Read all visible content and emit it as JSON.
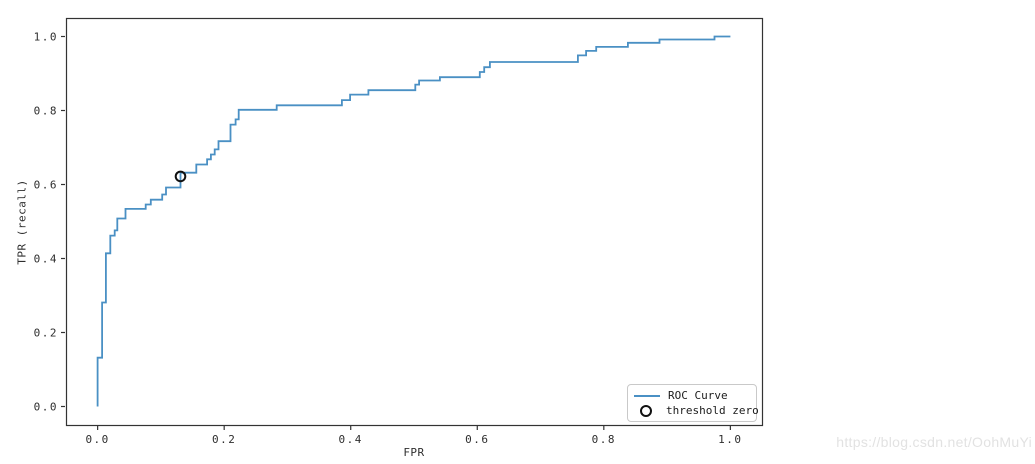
{
  "page": {
    "watermark": "https://blog.csdn.net/OohMuYi"
  },
  "colors": {
    "roc_line": "#4a90c4",
    "marker_stroke": "#111111",
    "spine": "#333333",
    "tick": "#333333",
    "tick_label": "#2e2e2e",
    "legend_border": "#c9c9c9",
    "watermark": "#e2e2e2",
    "background": "#ffffff"
  },
  "chart_data": {
    "type": "line",
    "title": "",
    "xlabel": "FPR",
    "ylabel": "TPR (recall)",
    "xlim": [
      -0.05,
      1.05
    ],
    "ylim": [
      -0.05,
      1.05
    ],
    "grid": false,
    "x_ticks": [
      0.0,
      0.2,
      0.4,
      0.6,
      0.8,
      1.0
    ],
    "y_ticks": [
      0.0,
      0.2,
      0.4,
      0.6,
      0.8,
      1.0
    ],
    "x_tick_labels": [
      "0.0",
      "0.2",
      "0.4",
      "0.6",
      "0.8",
      "1.0"
    ],
    "y_tick_labels": [
      "0.0",
      "0.2",
      "0.4",
      "0.6",
      "0.8",
      "1.0"
    ],
    "legend": {
      "position": "lower right",
      "entries": [
        {
          "label": "ROC Curve",
          "type": "line",
          "color": "#4a90c4"
        },
        {
          "label": "threshold zero",
          "type": "open-circle",
          "color": "#111111"
        }
      ]
    },
    "series": [
      {
        "name": "ROC Curve",
        "color": "#4a90c4",
        "drawstyle": "steps",
        "points": [
          [
            0.0,
            0.0
          ],
          [
            0.0,
            0.132
          ],
          [
            0.007,
            0.132
          ],
          [
            0.007,
            0.281
          ],
          [
            0.013,
            0.281
          ],
          [
            0.013,
            0.414
          ],
          [
            0.02,
            0.414
          ],
          [
            0.02,
            0.462
          ],
          [
            0.027,
            0.462
          ],
          [
            0.027,
            0.476
          ],
          [
            0.031,
            0.476
          ],
          [
            0.031,
            0.508
          ],
          [
            0.044,
            0.508
          ],
          [
            0.044,
            0.534
          ],
          [
            0.076,
            0.534
          ],
          [
            0.076,
            0.546
          ],
          [
            0.084,
            0.546
          ],
          [
            0.084,
            0.559
          ],
          [
            0.102,
            0.559
          ],
          [
            0.102,
            0.573
          ],
          [
            0.108,
            0.573
          ],
          [
            0.108,
            0.592
          ],
          [
            0.131,
            0.592
          ],
          [
            0.131,
            0.632
          ],
          [
            0.156,
            0.632
          ],
          [
            0.156,
            0.654
          ],
          [
            0.173,
            0.654
          ],
          [
            0.173,
            0.668
          ],
          [
            0.179,
            0.668
          ],
          [
            0.179,
            0.681
          ],
          [
            0.185,
            0.681
          ],
          [
            0.185,
            0.695
          ],
          [
            0.191,
            0.695
          ],
          [
            0.191,
            0.717
          ],
          [
            0.21,
            0.717
          ],
          [
            0.21,
            0.762
          ],
          [
            0.218,
            0.762
          ],
          [
            0.218,
            0.776
          ],
          [
            0.223,
            0.776
          ],
          [
            0.223,
            0.802
          ],
          [
            0.283,
            0.802
          ],
          [
            0.283,
            0.814
          ],
          [
            0.386,
            0.814
          ],
          [
            0.386,
            0.828
          ],
          [
            0.399,
            0.828
          ],
          [
            0.399,
            0.843
          ],
          [
            0.428,
            0.843
          ],
          [
            0.428,
            0.855
          ],
          [
            0.502,
            0.855
          ],
          [
            0.502,
            0.87
          ],
          [
            0.508,
            0.87
          ],
          [
            0.508,
            0.881
          ],
          [
            0.541,
            0.881
          ],
          [
            0.541,
            0.89
          ],
          [
            0.604,
            0.89
          ],
          [
            0.604,
            0.904
          ],
          [
            0.611,
            0.904
          ],
          [
            0.611,
            0.917
          ],
          [
            0.62,
            0.917
          ],
          [
            0.62,
            0.931
          ],
          [
            0.759,
            0.931
          ],
          [
            0.759,
            0.949
          ],
          [
            0.772,
            0.949
          ],
          [
            0.772,
            0.961
          ],
          [
            0.788,
            0.961
          ],
          [
            0.788,
            0.972
          ],
          [
            0.838,
            0.972
          ],
          [
            0.838,
            0.983
          ],
          [
            0.888,
            0.983
          ],
          [
            0.888,
            0.992
          ],
          [
            0.975,
            0.992
          ],
          [
            0.975,
            1.0
          ],
          [
            1.0,
            1.0
          ]
        ]
      }
    ],
    "markers": [
      {
        "name": "threshold zero",
        "x": 0.131,
        "y": 0.622,
        "style": "open-circle",
        "color": "#111111"
      }
    ]
  }
}
